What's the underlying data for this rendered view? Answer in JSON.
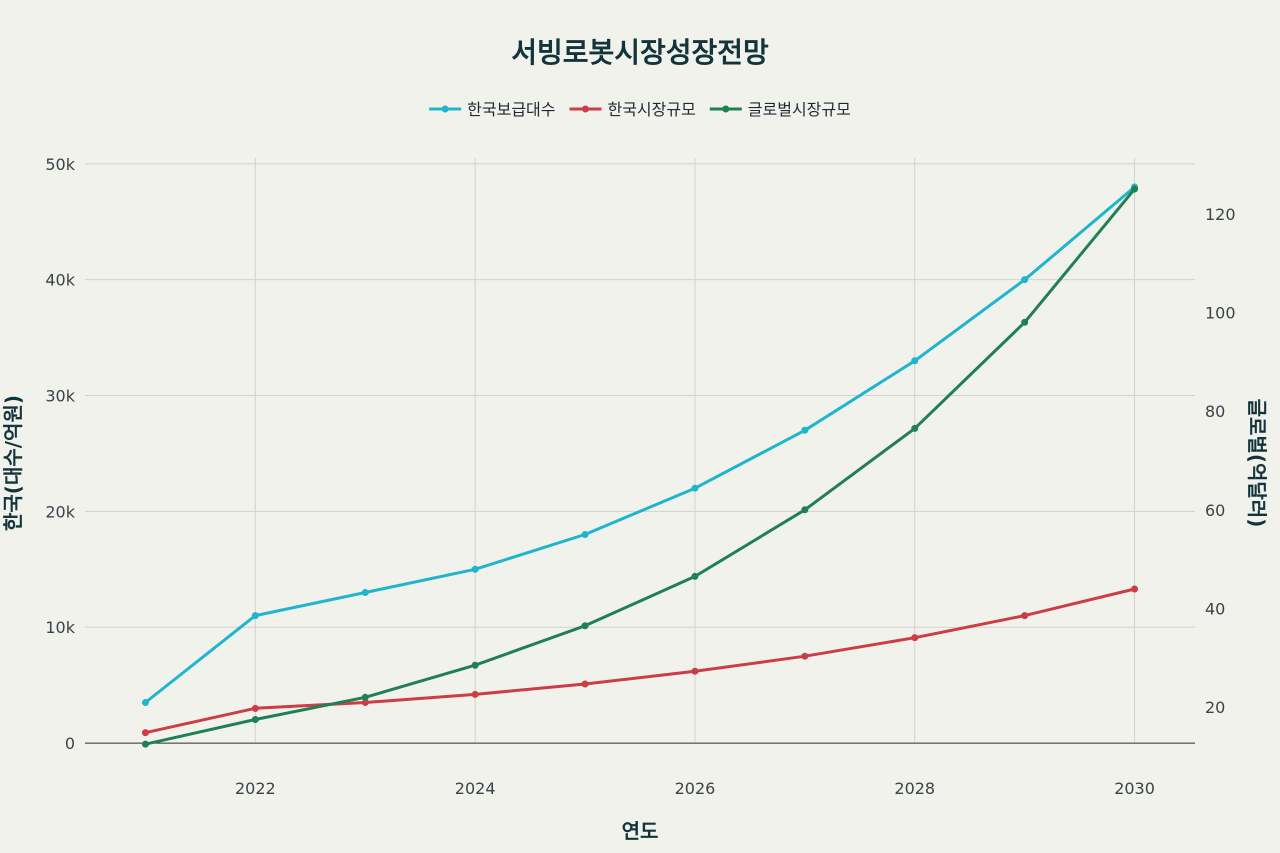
{
  "chart_data": {
    "type": "line",
    "title": "서빙로봇시장성장전망",
    "xlabel": "연도",
    "ylabel": "한국(대수/억원)",
    "y2label": "글로벌(억달러)",
    "x": [
      2021,
      2022,
      2023,
      2024,
      2025,
      2026,
      2027,
      2028,
      2029,
      2030
    ],
    "x_ticks": [
      "2022",
      "2024",
      "2026",
      "2028",
      "2030"
    ],
    "x_tick_values": [
      2022,
      2024,
      2026,
      2028,
      2030
    ],
    "xlim": [
      2020.45,
      2030.55
    ],
    "ylim": [
      -1200,
      50500
    ],
    "y2lim": [
      9.9,
      131.3
    ],
    "y_ticks": [
      "0",
      "10k",
      "20k",
      "30k",
      "40k",
      "50k"
    ],
    "y_tick_values": [
      0,
      10000,
      20000,
      30000,
      40000,
      50000
    ],
    "y2_ticks": [
      "20",
      "40",
      "60",
      "80",
      "100",
      "120"
    ],
    "y2_tick_values": [
      20,
      40,
      60,
      80,
      100,
      120
    ],
    "grid": true,
    "legend_position": "top-center",
    "series": [
      {
        "name": "한국보급대수",
        "axis": "y",
        "color": "#1fb5cc",
        "values": [
          3500,
          11000,
          13000,
          15000,
          18000,
          22000,
          27000,
          33000,
          40000,
          48000
        ]
      },
      {
        "name": "한국시장규모",
        "axis": "y",
        "color": "#cc3d45",
        "values": [
          900,
          3000,
          3500,
          4200,
          5100,
          6200,
          7500,
          9100,
          11000,
          13300
        ]
      },
      {
        "name": "글로벌시장규모",
        "axis": "y2",
        "color": "#218053",
        "values": [
          12.5,
          17.5,
          22.0,
          28.5,
          36.5,
          46.5,
          60.0,
          76.5,
          98.0,
          125.0
        ]
      }
    ]
  }
}
